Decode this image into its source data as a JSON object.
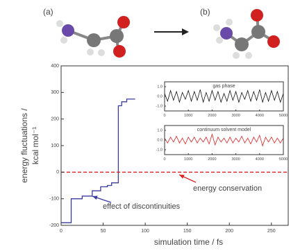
{
  "figure_labels": [
    "(a)",
    "(b)"
  ],
  "chart_data": [
    {
      "type": "line",
      "x_label": "simulation time / fs",
      "y_label": [
        "energy fluctuations /",
        "kcal mol⁻¹"
      ],
      "xlim": [
        0,
        270
      ],
      "xticks": [
        0,
        50,
        100,
        150,
        200,
        250
      ],
      "ylim": [
        -200,
        400
      ],
      "yticks": [
        -200,
        -100,
        0,
        100,
        200,
        300,
        400
      ],
      "series": [
        {
          "color": "#3a3aa0",
          "style": "solid",
          "x": [
            0,
            12,
            12,
            25,
            25,
            37,
            37,
            47,
            47,
            55,
            55,
            60,
            60,
            68,
            68,
            72,
            72,
            78,
            78,
            88
          ],
          "values": [
            -190,
            -190,
            -100,
            -100,
            -90,
            -90,
            -70,
            -70,
            -55,
            -55,
            -50,
            -50,
            -40,
            -40,
            250,
            250,
            265,
            265,
            275,
            275
          ]
        },
        {
          "color": "#e02020",
          "style": "dashed",
          "x": [
            0,
            270
          ],
          "values": [
            0,
            0
          ]
        }
      ],
      "annotations": [
        {
          "text": "energy conservation",
          "color": "#e02020"
        },
        {
          "text": "effect of discontinuities",
          "color": "#3a3aa0"
        }
      ]
    },
    {
      "type": "line",
      "title": "gas phase",
      "xlim": [
        0,
        5000
      ],
      "xticks": [
        0,
        1000,
        2000,
        3000,
        4000,
        5000
      ],
      "ylim": [
        -1.5,
        1.5
      ],
      "yticks": [
        {
          "value": -1,
          "label": "-1.0"
        },
        {
          "value": 0,
          "label": "0.0"
        },
        {
          "value": 1,
          "label": "1.0"
        }
      ],
      "series": [
        {
          "color": "#111111",
          "style": "solid",
          "x": [
            0,
            125,
            250,
            375,
            500,
            625,
            750,
            875,
            1000,
            1125,
            1250,
            1375,
            1500,
            1625,
            1750,
            1875,
            2000,
            2125,
            2250,
            2375,
            2500,
            2625,
            2750,
            2875,
            3000,
            3125,
            3250,
            3375,
            3500,
            3625,
            3750,
            3875,
            4000,
            4125,
            4250,
            4375,
            4500,
            4625,
            4750,
            4875,
            5000
          ],
          "values": [
            0.3,
            -0.5,
            0.6,
            -0.4,
            0.5,
            -0.6,
            0.4,
            -0.3,
            0.6,
            -0.5,
            0.5,
            -0.4,
            0.7,
            -0.6,
            0.4,
            -0.5,
            0.6,
            -0.4,
            0.5,
            -0.6,
            0.3,
            -0.5,
            0.6,
            -0.4,
            0.5,
            -0.6,
            0.4,
            -0.3,
            0.6,
            -0.5,
            0.5,
            -0.4,
            0.7,
            -0.6,
            0.4,
            -0.5,
            0.6,
            -0.4,
            0.5,
            -0.6,
            0.3
          ]
        }
      ]
    },
    {
      "type": "line",
      "title": "continuum solvent model",
      "xlim": [
        0,
        5000
      ],
      "xticks": [
        0,
        1000,
        2000,
        3000,
        4000,
        5000
      ],
      "ylim": [
        -1.5,
        1.5
      ],
      "yticks": [
        {
          "value": -1,
          "label": "-1.0"
        },
        {
          "value": 0,
          "label": "0.0"
        },
        {
          "value": 1,
          "label": "1.0"
        }
      ],
      "series": [
        {
          "color": "#e02020",
          "style": "solid",
          "x": [
            0,
            125,
            250,
            375,
            500,
            625,
            750,
            875,
            1000,
            1125,
            1250,
            1375,
            1500,
            1625,
            1750,
            1875,
            2000,
            2125,
            2250,
            2375,
            2500,
            2625,
            2750,
            2875,
            3000,
            3125,
            3250,
            3375,
            3500,
            3625,
            3750,
            3875,
            4000,
            4125,
            4250,
            4375,
            4500,
            4625,
            4750,
            4875,
            5000
          ],
          "values": [
            0.2,
            -0.3,
            0.3,
            -0.2,
            0.4,
            -0.3,
            0.2,
            -0.4,
            0.3,
            -0.2,
            0.3,
            -0.3,
            0.2,
            -0.2,
            0.3,
            -0.4,
            0.6,
            -0.5,
            0.3,
            -0.2,
            0.2,
            -0.3,
            0.3,
            -0.3,
            0.2,
            -0.2,
            0.4,
            -0.3,
            0.2,
            -0.4,
            0.3,
            -0.2,
            0.5,
            -0.6,
            0.3,
            -0.2,
            0.3,
            -0.3,
            0.2,
            -0.3,
            0.2
          ]
        }
      ]
    }
  ]
}
